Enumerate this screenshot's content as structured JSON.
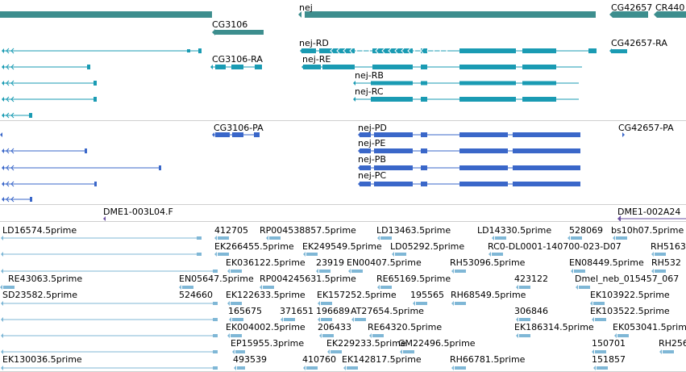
{
  "colors": {
    "gene": "#3d8e8e",
    "transcript": "#1a9bb3",
    "cds": "#3a67c9",
    "clone": "#6a4fa0",
    "est": "#7fb7d6",
    "separator": "#cfcfcf"
  },
  "icons": {
    "strand_arrow": "triangle-arrow-icon"
  },
  "gene_track": {
    "genes": [
      {
        "label": "nej"
      },
      {
        "label": "CG42657"
      },
      {
        "label": "CR440"
      },
      {
        "label": "CG3106"
      }
    ]
  },
  "transcript_track": {
    "labels": [
      "nej-RD",
      "CG42657-RA",
      "CG3106-RA",
      "nej-RE",
      "nej-RB",
      "nej-RC"
    ]
  },
  "cds_track": {
    "labels": [
      "CG3106-PA",
      "nej-PD",
      "CG42657-PA",
      "nej-PE",
      "nej-PB",
      "nej-PC"
    ]
  },
  "clone_track": {
    "labels": [
      "DME1-003L04.F",
      "DME1-002A24"
    ]
  },
  "est_track": {
    "labels": [
      "LD16574.5prime",
      "412705",
      "RP004538857.5prime",
      "LD13463.5prime",
      "LD14330.5prime",
      "528069",
      "bs10h07.5prime",
      "EK266455.5prime",
      "EK249549.5prime",
      "LD05292.5prime",
      "RC0-DL0001-140700-023-D07",
      "RH5163",
      "EK036122.5prime",
      "23919",
      "EN00407.5prime",
      "RH53096.5prime",
      "EN08449.5prime",
      "RH532",
      "RE43063.5prime",
      "EN05647.5prime",
      "RP004245631.5prime",
      "RE65169.5prime",
      "423122",
      "Dmel_neb_015457_067",
      "SD23582.5prime",
      "524660",
      "EK122633.5prime",
      "EK157252.5prime",
      "195565",
      "RH68549.5prime",
      "EK103922.5prime",
      "165675",
      "371651",
      "196689",
      "AT27654.5prime",
      "306846",
      "EK103522.5prime",
      "EK004002.5prime",
      "206433",
      "RE64320.5prime",
      "EK186314.5prime",
      "EK053041.5prime",
      "EP15955.3prime",
      "EK229233.5prime",
      "GM22496.5prime",
      "150701",
      "RH256",
      "EK130036.5prime",
      "493539",
      "410760",
      "EK142817.5prime",
      "RH66781.5prime",
      "151857"
    ]
  }
}
